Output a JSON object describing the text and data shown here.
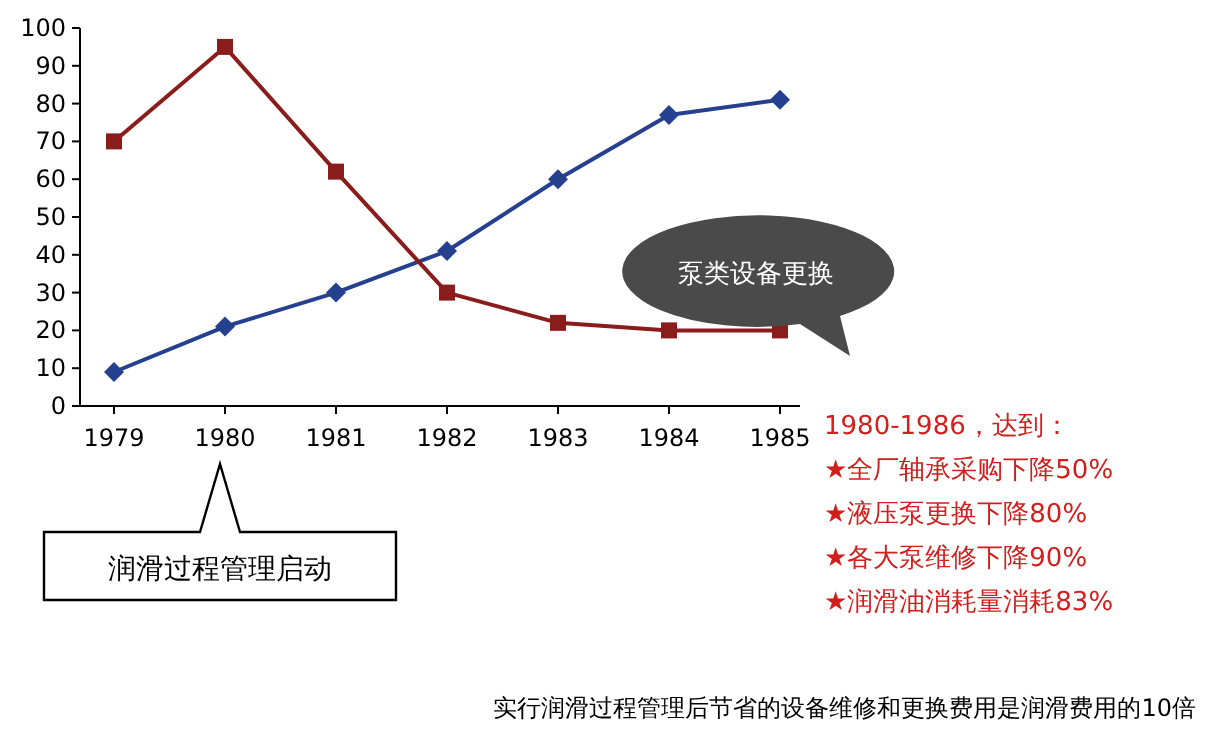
{
  "chart_data": {
    "type": "line",
    "categories": [
      "1979",
      "1980",
      "1981",
      "1982",
      "1983",
      "1984",
      "1985"
    ],
    "series": [
      {
        "color": "#24408e",
        "marker": "diamond",
        "values": [
          9,
          21,
          30,
          41,
          60,
          77,
          81
        ]
      },
      {
        "color": "#8b1c1c",
        "marker": "square",
        "values": [
          70,
          95,
          62,
          30,
          22,
          20,
          20
        ]
      }
    ],
    "ylim": [
      0,
      100
    ],
    "yticks": [
      0,
      10,
      20,
      30,
      40,
      50,
      60,
      70,
      80,
      90,
      100
    ],
    "grid": false,
    "line_style": "solid",
    "annotations": [
      "润滑过程管理启动",
      "泵类设备更换",
      "1980-1986，达到：",
      "★全厂轴承采购下降50%",
      "★液压泵更换下降80%",
      "★各大泵维修下降90%",
      "★润滑油消耗量消耗83%",
      "实行润滑过程管理后节省的设备维修和更换费用是润滑费用的10倍"
    ]
  }
}
